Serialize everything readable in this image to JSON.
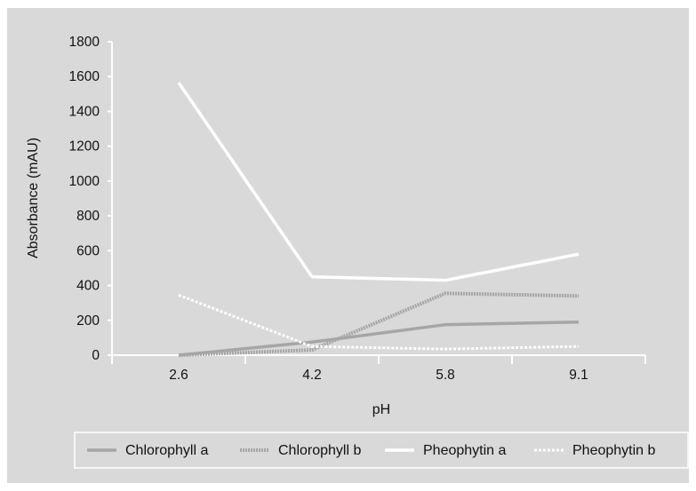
{
  "colors": {
    "background": "#d9d9d9",
    "axis": "#ffffff",
    "chlorophyll_a": "#a6a6a6",
    "chlorophyll_b": "#a6a6a6",
    "pheophytin_a": "#ffffff",
    "pheophytin_b": "#ffffff"
  },
  "chart_data": {
    "type": "line",
    "title": "",
    "xlabel": "pH",
    "ylabel": "Absorbance (mAU)",
    "categories": [
      "2.6",
      "4.2",
      "5.8",
      "9.1"
    ],
    "ylim": [
      0,
      1800
    ],
    "yticks": [
      "0",
      "200",
      "400",
      "600",
      "800",
      "1000",
      "1200",
      "1400",
      "1600",
      "1800"
    ],
    "grid": false,
    "legend_position": "bottom",
    "series": [
      {
        "name": "Chlorophyll a",
        "values": [
          0,
          75,
          175,
          190
        ],
        "style": "solid",
        "color_key": "chlorophyll_a"
      },
      {
        "name": "Chlorophyll b",
        "values": [
          0,
          30,
          355,
          340
        ],
        "style": "dashed",
        "color_key": "chlorophyll_b"
      },
      {
        "name": "Pheophytin a",
        "values": [
          1565,
          450,
          430,
          580
        ],
        "style": "solid",
        "color_key": "pheophytin_a"
      },
      {
        "name": "Pheophytin b",
        "values": [
          345,
          50,
          35,
          50
        ],
        "style": "dotted",
        "color_key": "pheophytin_b"
      }
    ]
  }
}
